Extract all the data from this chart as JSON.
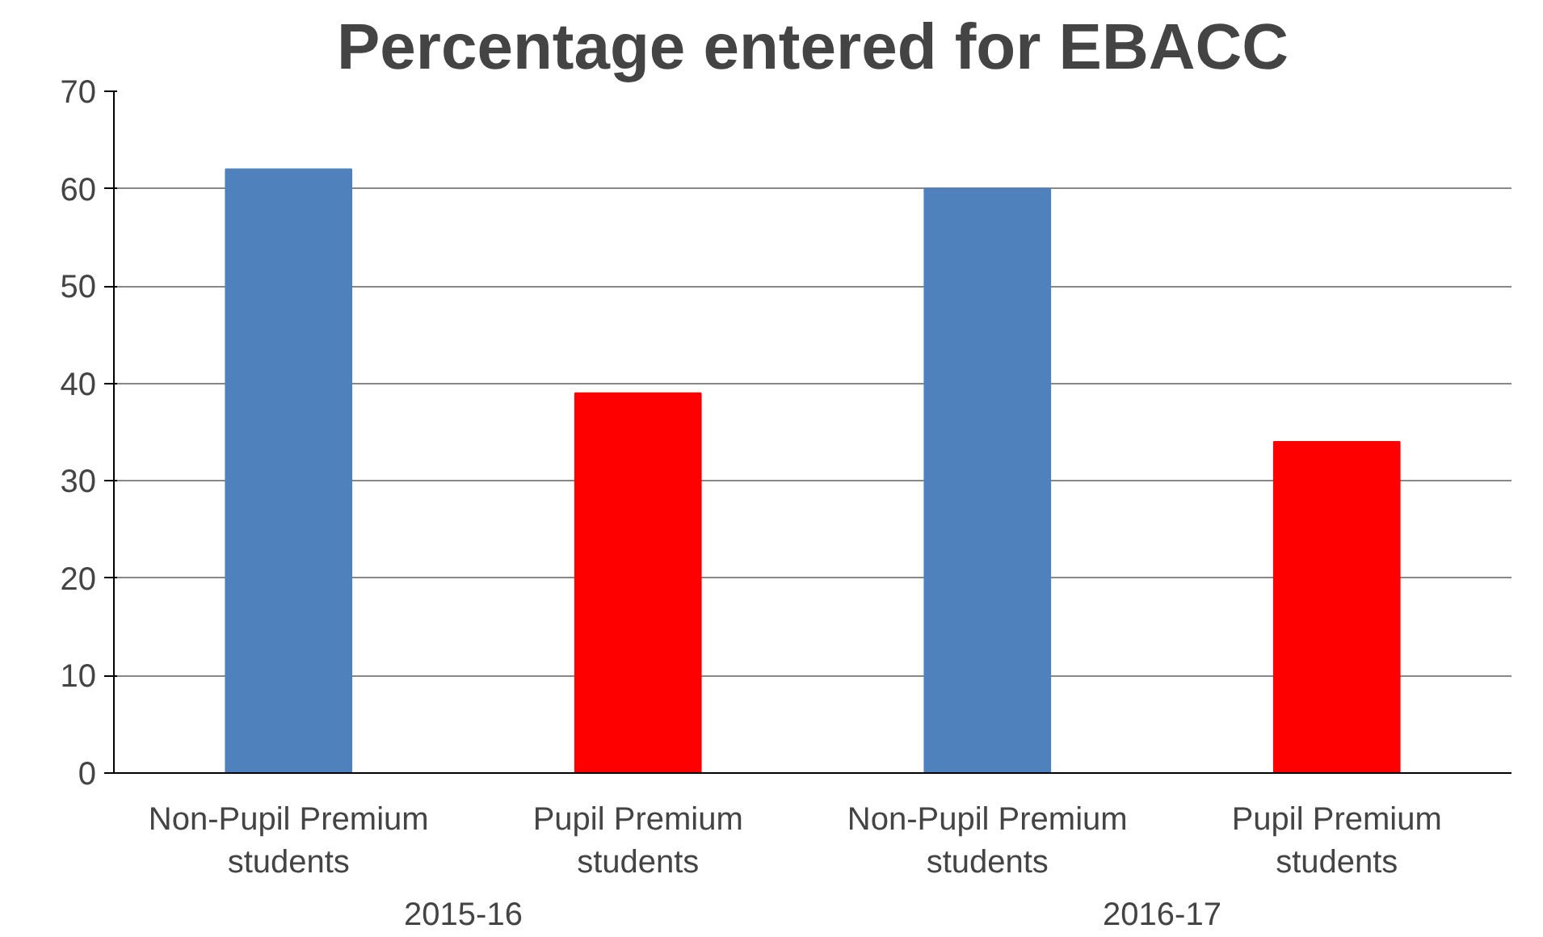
{
  "chart_data": {
    "type": "bar",
    "title": "Percentage entered for EBACC",
    "categories": [
      "Non-Pupil Premium students",
      "Pupil Premium students",
      "Non-Pupil Premium students",
      "Pupil Premium students"
    ],
    "values": [
      62,
      39,
      60,
      34
    ],
    "colors": [
      "#4f81bd",
      "#ff0000",
      "#4f81bd",
      "#ff0000"
    ],
    "ylim": [
      0,
      70
    ],
    "yticks": [
      0,
      10,
      20,
      30,
      40,
      50,
      60,
      70
    ],
    "grid": "y",
    "annotations": [
      "2015-16",
      "2016-17"
    ]
  }
}
